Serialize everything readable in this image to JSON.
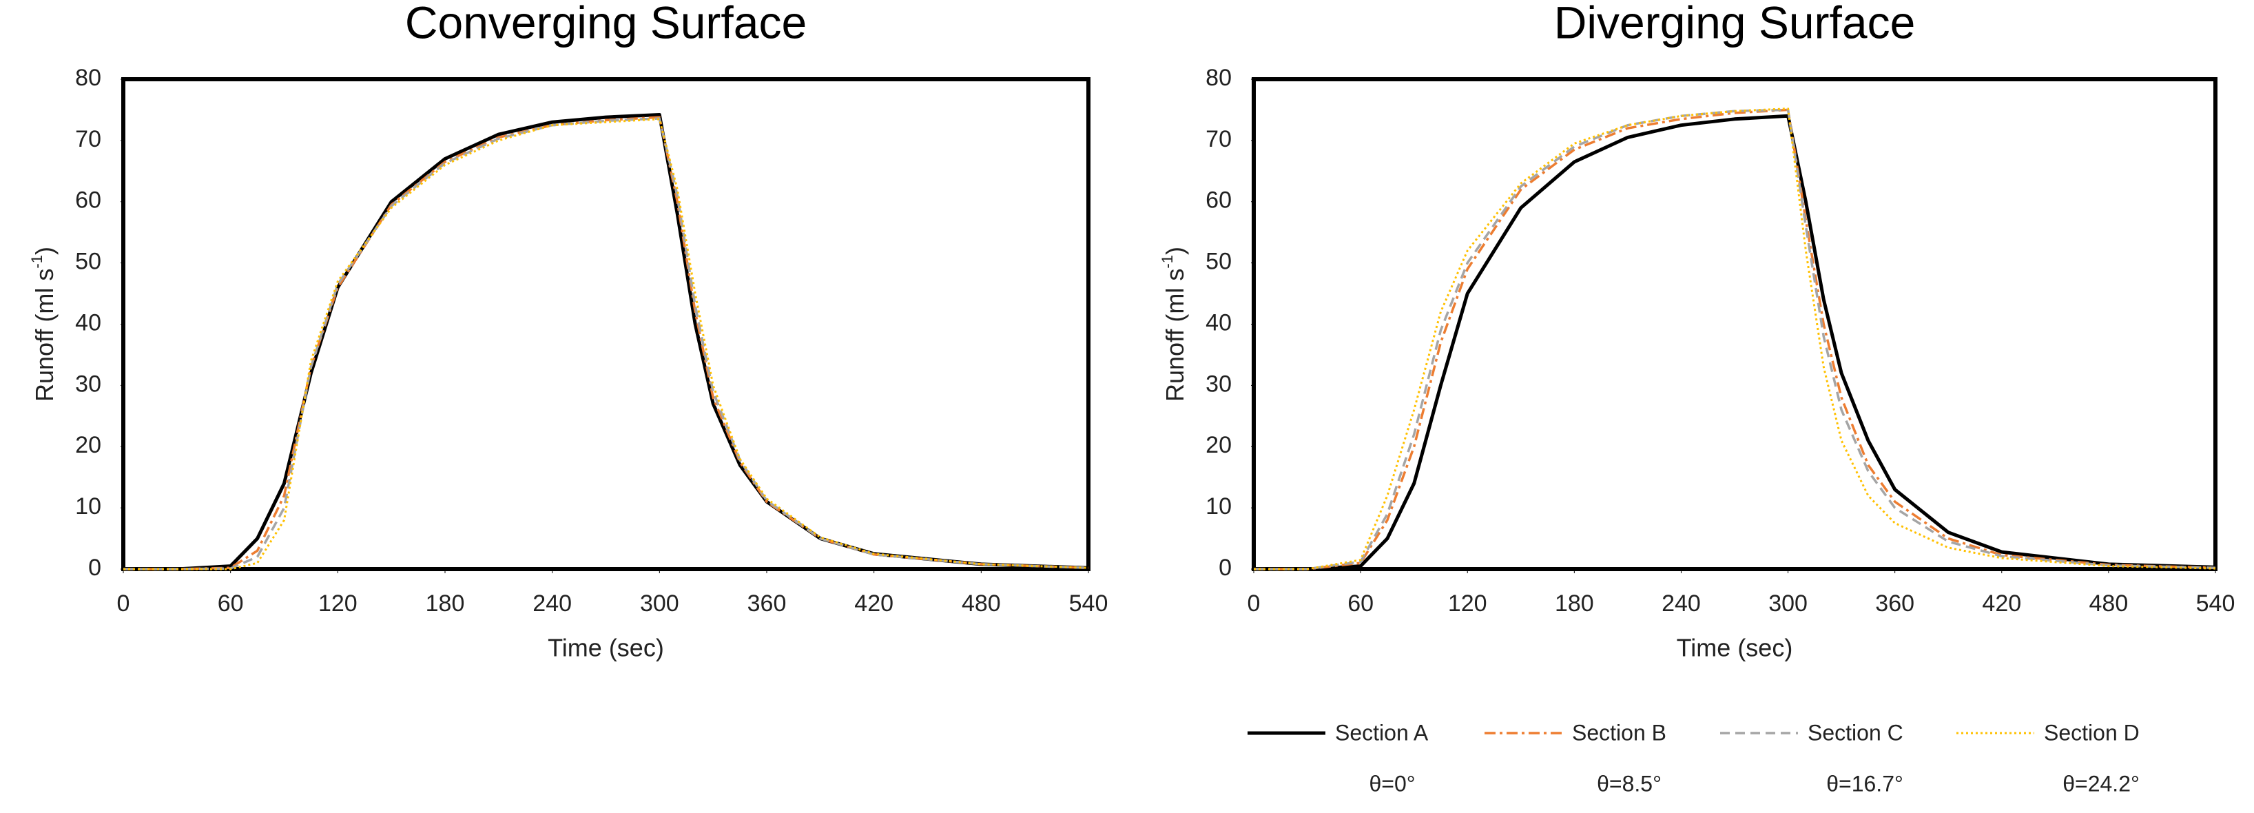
{
  "chart_data": [
    {
      "type": "line",
      "title": "Converging Surface",
      "xlabel": "Time (sec)",
      "ylabel": [
        "Runoff (ml s",
        "-1",
        ")"
      ],
      "x": [
        0,
        30,
        60,
        75,
        90,
        105,
        120,
        150,
        180,
        210,
        240,
        270,
        300,
        310,
        320,
        330,
        345,
        360,
        390,
        420,
        480,
        540
      ],
      "xlim": [
        0,
        540
      ],
      "xticks": [
        0,
        60,
        120,
        180,
        240,
        300,
        360,
        420,
        480,
        540
      ],
      "ylim": [
        0,
        80
      ],
      "yticks": [
        0,
        10,
        20,
        30,
        40,
        50,
        60,
        70,
        80
      ],
      "series": [
        {
          "color": "#000000",
          "dash": "solid",
          "values": [
            0,
            0,
            0.5,
            5,
            14,
            32,
            46,
            60,
            67,
            71,
            73,
            73.8,
            74.2,
            58,
            40,
            27,
            17,
            11,
            5,
            2.5,
            0.8,
            0.2
          ]
        },
        {
          "color": "#ed7d31",
          "dash": "dashdot",
          "values": [
            0,
            0,
            0.2,
            3,
            12,
            33,
            46,
            59.5,
            66.5,
            70.5,
            72.5,
            73.3,
            73.8,
            60,
            42,
            28,
            17.5,
            11,
            5,
            2.4,
            0.8,
            0.2
          ]
        },
        {
          "color": "#a5a5a5",
          "dash": "dash",
          "values": [
            0,
            0,
            0.1,
            2,
            10,
            33,
            46.5,
            59.3,
            66.3,
            70.3,
            72.5,
            73.2,
            73.6,
            61,
            43,
            29,
            17.8,
            11.2,
            5,
            2.4,
            0.8,
            0.2
          ]
        },
        {
          "color": "#ffc000",
          "dash": "dot",
          "values": [
            0,
            0,
            0,
            1,
            8,
            34,
            47,
            59,
            66,
            70,
            72.5,
            73,
            73.5,
            62,
            45,
            30,
            18,
            11.5,
            5.2,
            2.5,
            0.8,
            0.2
          ]
        }
      ]
    },
    {
      "type": "line",
      "title": "Diverging Surface",
      "xlabel": "Time (sec)",
      "ylabel": [
        "Runoff (ml s",
        "-1",
        ")"
      ],
      "x": [
        0,
        30,
        60,
        75,
        90,
        105,
        120,
        150,
        180,
        210,
        240,
        270,
        300,
        310,
        320,
        330,
        345,
        360,
        390,
        420,
        480,
        540
      ],
      "xlim": [
        0,
        540
      ],
      "xticks": [
        0,
        60,
        120,
        180,
        240,
        300,
        360,
        420,
        480,
        540
      ],
      "ylim": [
        0,
        80
      ],
      "yticks": [
        0,
        10,
        20,
        30,
        40,
        50,
        60,
        70,
        80
      ],
      "series": [
        {
          "color": "#000000",
          "dash": "solid",
          "values": [
            0,
            0,
            0.5,
            5,
            14,
            30,
            45,
            59,
            66.5,
            70.5,
            72.5,
            73.5,
            74,
            60,
            44,
            32,
            21,
            13,
            6,
            2.8,
            0.8,
            0.3
          ]
        },
        {
          "color": "#ed7d31",
          "dash": "dashdot",
          "values": [
            0,
            0,
            1,
            8,
            20,
            37,
            49,
            62,
            68.5,
            72,
            73.5,
            74.5,
            75,
            57,
            40,
            28,
            17,
            11,
            5,
            2.3,
            0.7,
            0.2
          ]
        },
        {
          "color": "#a5a5a5",
          "dash": "dash",
          "values": [
            0,
            0,
            1.2,
            9,
            22,
            39,
            50,
            62.5,
            69,
            72.5,
            74,
            74.8,
            75,
            56,
            38,
            26,
            16,
            10,
            4.5,
            2.1,
            0.6,
            0.2
          ]
        },
        {
          "color": "#ffc000",
          "dash": "dot",
          "values": [
            0,
            0,
            1.5,
            12,
            26,
            42,
            52,
            63,
            69.5,
            72.5,
            74,
            74.8,
            75.2,
            52,
            33,
            21,
            12,
            7.5,
            3.5,
            1.8,
            0.5,
            0.1
          ]
        }
      ]
    }
  ],
  "legend": {
    "entries": [
      {
        "name": "Section A",
        "label": "θ=0°"
      },
      {
        "name": "Section B",
        "label": "θ=8.5°"
      },
      {
        "name": "Section C",
        "label": "θ=16.7°"
      },
      {
        "name": "Section D",
        "label": "θ=24.2°"
      }
    ]
  }
}
